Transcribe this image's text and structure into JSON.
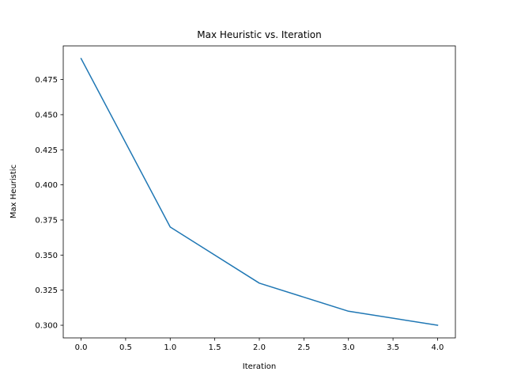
{
  "chart_data": {
    "type": "line",
    "title": "Max Heuristic vs. Iteration",
    "xlabel": "Iteration",
    "ylabel": "Max Heuristic",
    "xlim": [
      -0.2,
      4.2
    ],
    "ylim": [
      0.291,
      0.499
    ],
    "xticks": [
      0.0,
      0.5,
      1.0,
      1.5,
      2.0,
      2.5,
      3.0,
      3.5,
      4.0
    ],
    "xtick_labels": [
      "0.0",
      "0.5",
      "1.0",
      "1.5",
      "2.0",
      "2.5",
      "3.0",
      "3.5",
      "4.0"
    ],
    "yticks": [
      0.3,
      0.325,
      0.35,
      0.375,
      0.4,
      0.425,
      0.45,
      0.475
    ],
    "ytick_labels": [
      "0.300",
      "0.325",
      "0.350",
      "0.375",
      "0.400",
      "0.425",
      "0.450",
      "0.475"
    ],
    "grid": false,
    "series": [
      {
        "x": [
          0,
          1,
          2,
          3,
          4
        ],
        "values": [
          0.49,
          0.37,
          0.33,
          0.31,
          0.3
        ],
        "color": "#1f77b4"
      }
    ]
  }
}
